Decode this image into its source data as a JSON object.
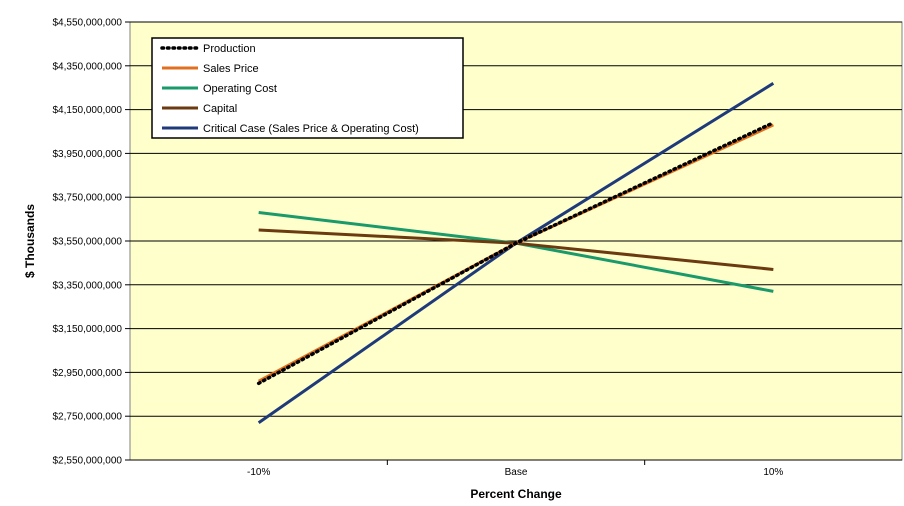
{
  "chart_data": {
    "type": "line",
    "title": "",
    "xlabel": "Percent Change",
    "ylabel": "$ Thousands",
    "categories": [
      "-10%",
      "Base",
      "10%"
    ],
    "ylim": [
      2550000000,
      4550000000
    ],
    "yticks": [
      2550000000,
      2750000000,
      2950000000,
      3150000000,
      3350000000,
      3550000000,
      3750000000,
      3950000000,
      4150000000,
      4350000000,
      4550000000
    ],
    "ytick_labels": [
      "$2,550,000,000",
      "$2,750,000,000",
      "$2,950,000,000",
      "$3,150,000,000",
      "$3,350,000,000",
      "$3,550,000,000",
      "$3,750,000,000",
      "$3,950,000,000",
      "$4,150,000,000",
      "$4,350,000,000",
      "$4,550,000,000"
    ],
    "grid": "horizontal",
    "legend_position": "top-left",
    "plot_background": "#ffffcc",
    "series": [
      {
        "name": "Production",
        "values": [
          2900000000,
          3540000000,
          4090000000
        ],
        "color": "#000000",
        "style": "dotted"
      },
      {
        "name": "Sales Price",
        "values": [
          2910000000,
          3540000000,
          4080000000
        ],
        "color": "#e07020",
        "style": "solid"
      },
      {
        "name": "Operating Cost",
        "values": [
          3680000000,
          3540000000,
          3320000000
        ],
        "color": "#1a9a6a",
        "style": "solid"
      },
      {
        "name": "Capital",
        "values": [
          3600000000,
          3540000000,
          3420000000
        ],
        "color": "#6b3a10",
        "style": "solid"
      },
      {
        "name": "Critical Case (Sales Price & Operating Cost)",
        "values": [
          2720000000,
          3540000000,
          4270000000
        ],
        "color": "#1f3a7a",
        "style": "solid"
      }
    ]
  }
}
